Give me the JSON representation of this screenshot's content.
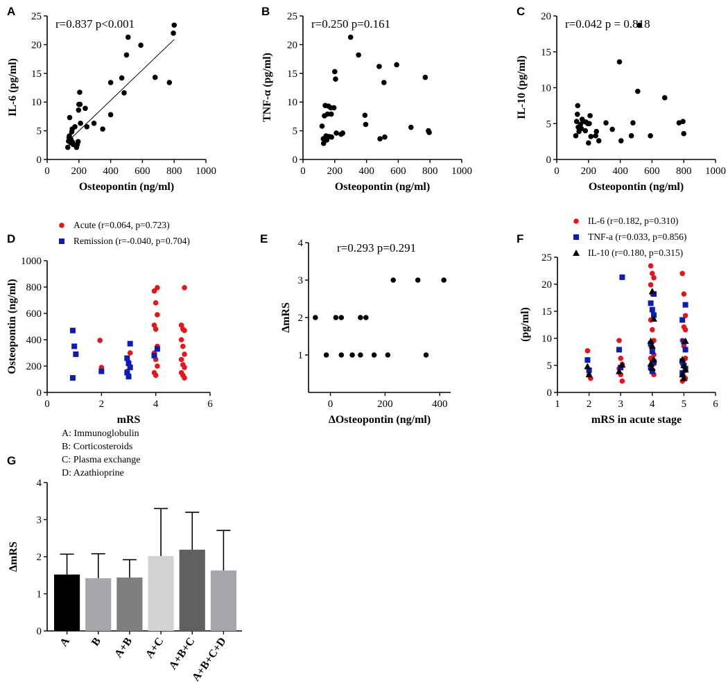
{
  "colors": {
    "red": "#e8141c",
    "blue": "#0a1eb4",
    "black": "#000000",
    "bars": [
      "#000000",
      "#a6a6ab",
      "#7f7f7f",
      "#d3d3d3",
      "#606060",
      "#a6a6ab"
    ]
  },
  "chart_data": [
    {
      "panel": "A",
      "type": "scatter",
      "stat": "r=0.837 p<0.001",
      "xlabel": "Osteopontin (ng/ml)",
      "ylabel": "IL-6 (pg/ml)",
      "xlim": [
        0,
        1000
      ],
      "ylim": [
        0,
        25
      ],
      "xticks": [
        0,
        200,
        400,
        600,
        800,
        1000
      ],
      "yticks": [
        0,
        5,
        10,
        15,
        20,
        25
      ],
      "trendline": [
        [
          140,
          3.4
        ],
        [
          800,
          20.9
        ]
      ],
      "points": [
        [
          130,
          2.1
        ],
        [
          135,
          3.2
        ],
        [
          138,
          3.8
        ],
        [
          140,
          4.1
        ],
        [
          142,
          7.3
        ],
        [
          148,
          2.9
        ],
        [
          150,
          3.5
        ],
        [
          155,
          4.8
        ],
        [
          158,
          5.3
        ],
        [
          160,
          3.0
        ],
        [
          165,
          2.6
        ],
        [
          175,
          5.7
        ],
        [
          185,
          2.1
        ],
        [
          190,
          2.6
        ],
        [
          195,
          3.1
        ],
        [
          198,
          8.6
        ],
        [
          200,
          9.6
        ],
        [
          205,
          11.7
        ],
        [
          207,
          9.6
        ],
        [
          210,
          6.3
        ],
        [
          240,
          8.9
        ],
        [
          250,
          5.7
        ],
        [
          295,
          6.3
        ],
        [
          350,
          5.3
        ],
        [
          400,
          7.8
        ],
        [
          400,
          13.4
        ],
        [
          470,
          14.2
        ],
        [
          485,
          11.6
        ],
        [
          500,
          18.2
        ],
        [
          510,
          21.3
        ],
        [
          590,
          19.9
        ],
        [
          680,
          14.3
        ],
        [
          770,
          13.4
        ],
        [
          795,
          22.0
        ],
        [
          800,
          23.4
        ]
      ]
    },
    {
      "panel": "B",
      "type": "scatter",
      "stat": "r=0.250 p=0.161",
      "xlabel": "Osteopontin (ng/ml)",
      "ylabel": "TNF-α (pg/ml)",
      "xlim": [
        0,
        1000
      ],
      "ylim": [
        0,
        25
      ],
      "xticks": [
        0,
        200,
        400,
        600,
        800,
        1000
      ],
      "yticks": [
        0,
        5,
        10,
        15,
        20,
        25
      ],
      "points": [
        [
          120,
          5.8
        ],
        [
          128,
          3.6
        ],
        [
          130,
          2.8
        ],
        [
          135,
          7.6
        ],
        [
          140,
          9.4
        ],
        [
          145,
          4.1
        ],
        [
          150,
          3.4
        ],
        [
          155,
          7.9
        ],
        [
          160,
          9.3
        ],
        [
          165,
          4.0
        ],
        [
          175,
          9.0
        ],
        [
          178,
          7.9
        ],
        [
          180,
          3.9
        ],
        [
          195,
          9.0
        ],
        [
          200,
          15.3
        ],
        [
          205,
          14.0
        ],
        [
          210,
          4.6
        ],
        [
          240,
          4.4
        ],
        [
          250,
          4.6
        ],
        [
          300,
          21.3
        ],
        [
          350,
          18.2
        ],
        [
          390,
          7.7
        ],
        [
          395,
          6.1
        ],
        [
          480,
          16.2
        ],
        [
          485,
          3.6
        ],
        [
          510,
          13.4
        ],
        [
          515,
          3.9
        ],
        [
          590,
          16.5
        ],
        [
          680,
          5.6
        ],
        [
          770,
          14.3
        ],
        [
          790,
          5.0
        ],
        [
          795,
          4.7
        ]
      ]
    },
    {
      "panel": "C",
      "type": "scatter",
      "stat": "r=0.042 p = 0.818",
      "xlabel": "Osteopontin (ng/ml)",
      "ylabel": "IL-10 (pg/ml)",
      "xlim": [
        0,
        1000
      ],
      "ylim": [
        0,
        20
      ],
      "xticks": [
        0,
        200,
        400,
        600,
        800,
        1000
      ],
      "yticks": [
        0,
        5,
        10,
        15,
        20
      ],
      "points": [
        [
          120,
          3.3
        ],
        [
          125,
          5.3
        ],
        [
          130,
          6.3
        ],
        [
          132,
          7.5
        ],
        [
          135,
          4.5
        ],
        [
          140,
          3.9
        ],
        [
          150,
          4.9
        ],
        [
          155,
          4.3
        ],
        [
          160,
          5.6
        ],
        [
          170,
          5.3
        ],
        [
          180,
          4.0
        ],
        [
          185,
          5.2
        ],
        [
          195,
          5.0
        ],
        [
          200,
          2.3
        ],
        [
          205,
          5.0
        ],
        [
          210,
          6.1
        ],
        [
          215,
          3.2
        ],
        [
          245,
          3.3
        ],
        [
          250,
          3.9
        ],
        [
          265,
          2.6
        ],
        [
          310,
          5.1
        ],
        [
          350,
          4.2
        ],
        [
          395,
          13.6
        ],
        [
          405,
          2.6
        ],
        [
          470,
          3.3
        ],
        [
          480,
          5.1
        ],
        [
          510,
          9.5
        ],
        [
          520,
          18.7
        ],
        [
          590,
          3.3
        ],
        [
          680,
          8.6
        ],
        [
          770,
          5.1
        ],
        [
          795,
          5.3
        ],
        [
          800,
          3.6
        ]
      ]
    },
    {
      "panel": "D",
      "type": "scatter",
      "xlabel": "mRS",
      "ylabel": "Osteopontin (ng/ml)",
      "xlim": [
        0,
        6
      ],
      "ylim": [
        0,
        1000
      ],
      "xticks": [
        0,
        2,
        4,
        6
      ],
      "yticks": [
        0,
        200,
        400,
        600,
        800,
        1000
      ],
      "series": [
        {
          "name": "Acute (r=0.064, p=0.723)",
          "marker": "circle",
          "color": "red",
          "points": [
            [
              2,
              395
            ],
            [
              2,
              190
            ],
            [
              3,
              300
            ],
            [
              3,
              260
            ],
            [
              3,
              230
            ],
            [
              3,
              190
            ],
            [
              3,
              160
            ],
            [
              3,
              130
            ],
            [
              4,
              795
            ],
            [
              4,
              770
            ],
            [
              4,
              680
            ],
            [
              4,
              590
            ],
            [
              4,
              510
            ],
            [
              4,
              480
            ],
            [
              4,
              350
            ],
            [
              4,
              300
            ],
            [
              4,
              250
            ],
            [
              4,
              200
            ],
            [
              4,
              150
            ],
            [
              4,
              130
            ],
            [
              5,
              795
            ],
            [
              5,
              510
            ],
            [
              5,
              480
            ],
            [
              5,
              470
            ],
            [
              5,
              400
            ],
            [
              5,
              350
            ],
            [
              5,
              290
            ],
            [
              5,
              250
            ],
            [
              5,
              210
            ],
            [
              5,
              190
            ],
            [
              5,
              150
            ],
            [
              5,
              130
            ],
            [
              5,
              110
            ]
          ]
        },
        {
          "name": "Remission (r=-0.040, p=0.704)",
          "marker": "square",
          "color": "blue",
          "points": [
            [
              1,
              470
            ],
            [
              1,
              350
            ],
            [
              1,
              290
            ],
            [
              1,
              110
            ],
            [
              2,
              160
            ],
            [
              3,
              370
            ],
            [
              3,
              260
            ],
            [
              3,
              220
            ],
            [
              3,
              190
            ],
            [
              3,
              150
            ],
            [
              3,
              120
            ],
            [
              4,
              330
            ],
            [
              4,
              280
            ]
          ]
        }
      ]
    },
    {
      "panel": "E",
      "type": "scatter",
      "stat": "r=0.293 p=0.291",
      "xlabel": "ΔOsteopontin (ng/ml)",
      "ylabel": "ΔmRS",
      "xlim": [
        -80,
        440
      ],
      "ylim": [
        0,
        4
      ],
      "xticks": [
        0,
        200,
        400
      ],
      "yticks": [
        1,
        2,
        3,
        4
      ],
      "points": [
        [
          -55,
          2
        ],
        [
          -15,
          1
        ],
        [
          20,
          2
        ],
        [
          40,
          2
        ],
        [
          40,
          1
        ],
        [
          80,
          1
        ],
        [
          110,
          1
        ],
        [
          110,
          2
        ],
        [
          130,
          2
        ],
        [
          160,
          1
        ],
        [
          210,
          1
        ],
        [
          230,
          3
        ],
        [
          320,
          3
        ],
        [
          350,
          1
        ],
        [
          415,
          3
        ]
      ]
    },
    {
      "panel": "F",
      "type": "scatter",
      "xlabel": "mRS in acute stage",
      "ylabel": "(pg/ml)",
      "xlim": [
        1,
        6
      ],
      "ylim": [
        0,
        25
      ],
      "xticks": [
        1,
        2,
        3,
        4,
        5,
        6
      ],
      "yticks": [
        0,
        5,
        10,
        15,
        20,
        25
      ],
      "series": [
        {
          "name": "IL-6 (r=0.182, p=0.310)",
          "marker": "circle",
          "color": "red",
          "points": [
            [
              2,
              7.7
            ],
            [
              2,
              3.2
            ],
            [
              2,
              2.6
            ],
            [
              3,
              9.6
            ],
            [
              3,
              6.3
            ],
            [
              3,
              5.2
            ],
            [
              3,
              4.4
            ],
            [
              3,
              3.3
            ],
            [
              3,
              2.1
            ],
            [
              4,
              23.4
            ],
            [
              4,
              22.0
            ],
            [
              4,
              21.2
            ],
            [
              4,
              19.9
            ],
            [
              4,
              18.2
            ],
            [
              4,
              14.3
            ],
            [
              4,
              13.4
            ],
            [
              4,
              11.6
            ],
            [
              4,
              9.6
            ],
            [
              4,
              8.7
            ],
            [
              4,
              7.8
            ],
            [
              4,
              7.0
            ],
            [
              4,
              6.3
            ],
            [
              4,
              5.7
            ],
            [
              4,
              5.3
            ],
            [
              4,
              4.6
            ],
            [
              4,
              4.0
            ],
            [
              4,
              3.3
            ],
            [
              5,
              22.0
            ],
            [
              5,
              18.2
            ],
            [
              5,
              14.2
            ],
            [
              5,
              13.4
            ],
            [
              5,
              12.1
            ],
            [
              5,
              11.6
            ],
            [
              5,
              9.6
            ],
            [
              5,
              8.6
            ],
            [
              5,
              6.3
            ],
            [
              5,
              5.3
            ],
            [
              5,
              4.8
            ],
            [
              5,
              4.1
            ],
            [
              5,
              3.5
            ],
            [
              5,
              2.9
            ],
            [
              5,
              2.6
            ],
            [
              5,
              2.1
            ]
          ]
        },
        {
          "name": "TNF-a (r=0.033, p=0.856)",
          "marker": "square",
          "color": "blue",
          "points": [
            [
              2,
              6.0
            ],
            [
              2,
              4.1
            ],
            [
              3,
              21.3
            ],
            [
              3,
              7.9
            ],
            [
              3,
              4.6
            ],
            [
              4,
              18.2
            ],
            [
              4,
              16.5
            ],
            [
              4,
              15.3
            ],
            [
              4,
              14.3
            ],
            [
              4,
              9.0
            ],
            [
              4,
              7.6
            ],
            [
              4,
              5.6
            ],
            [
              4,
              4.6
            ],
            [
              4,
              3.9
            ],
            [
              5,
              16.2
            ],
            [
              5,
              13.4
            ],
            [
              5,
              9.4
            ],
            [
              5,
              7.9
            ],
            [
              5,
              5.8
            ],
            [
              5,
              5.0
            ],
            [
              5,
              4.4
            ],
            [
              5,
              3.6
            ]
          ]
        },
        {
          "name": "IL-10 (r=0.180, p=0.315)",
          "marker": "triangle",
          "color": "black",
          "points": [
            [
              2,
              4.8
            ],
            [
              2,
              3.3
            ],
            [
              3,
              5.1
            ],
            [
              3,
              3.9
            ],
            [
              4,
              18.7
            ],
            [
              4,
              13.6
            ],
            [
              4,
              9.5
            ],
            [
              4,
              8.6
            ],
            [
              4,
              6.1
            ],
            [
              4,
              5.3
            ],
            [
              4,
              4.5
            ],
            [
              5,
              9.5
            ],
            [
              5,
              6.1
            ],
            [
              5,
              5.0
            ],
            [
              5,
              4.2
            ],
            [
              5,
              3.3
            ],
            [
              5,
              2.6
            ]
          ]
        }
      ]
    },
    {
      "panel": "G",
      "type": "bar",
      "ylabel": "ΔmRS",
      "categories": [
        "A",
        "B",
        "A+B",
        "A+C",
        "A+B+C",
        "A+B+C+D"
      ],
      "values": [
        1.52,
        1.42,
        1.44,
        2.02,
        2.19,
        1.63
      ],
      "errors": [
        0.55,
        0.66,
        0.48,
        1.28,
        1.01,
        1.08
      ],
      "ylim": [
        0,
        4
      ],
      "yticks": [
        0,
        1,
        2,
        3,
        4
      ],
      "annotations": [
        "A: Immunoglobulin",
        "B: Corticosteroids",
        "C: Plasma exchange",
        "D: Azathioprine"
      ]
    }
  ]
}
